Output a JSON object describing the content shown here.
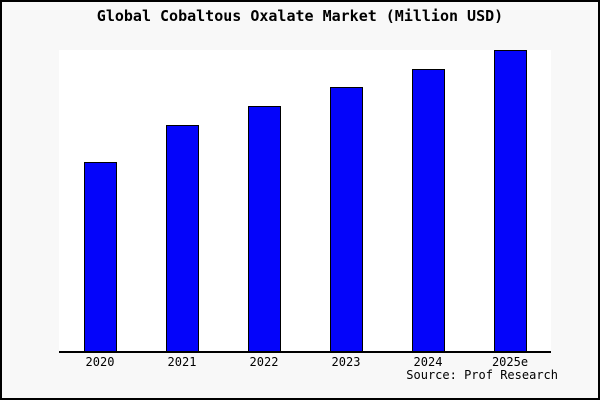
{
  "chart_data": {
    "type": "bar",
    "title": "Global Cobaltous Oxalate Market (Million USD)",
    "categories": [
      "2020",
      "2021",
      "2022",
      "2023",
      "2024",
      "2025e"
    ],
    "values": [
      62.9,
      75.2,
      81.5,
      87.7,
      93.7,
      100
    ],
    "values_unit": "relative height, % of 2025e bar (y-axis has no ticks or labels)",
    "xlabel": "",
    "ylabel": "",
    "ylim": [
      0,
      100
    ],
    "grid": false,
    "legend": null,
    "bar_color": "#0404fa",
    "bar_border_color": "#000000",
    "axis_color": "#000000",
    "background_color": "#f8f8f8",
    "plot_background_color": "#ffffff"
  },
  "source": {
    "label": "Source: Prof Research"
  }
}
